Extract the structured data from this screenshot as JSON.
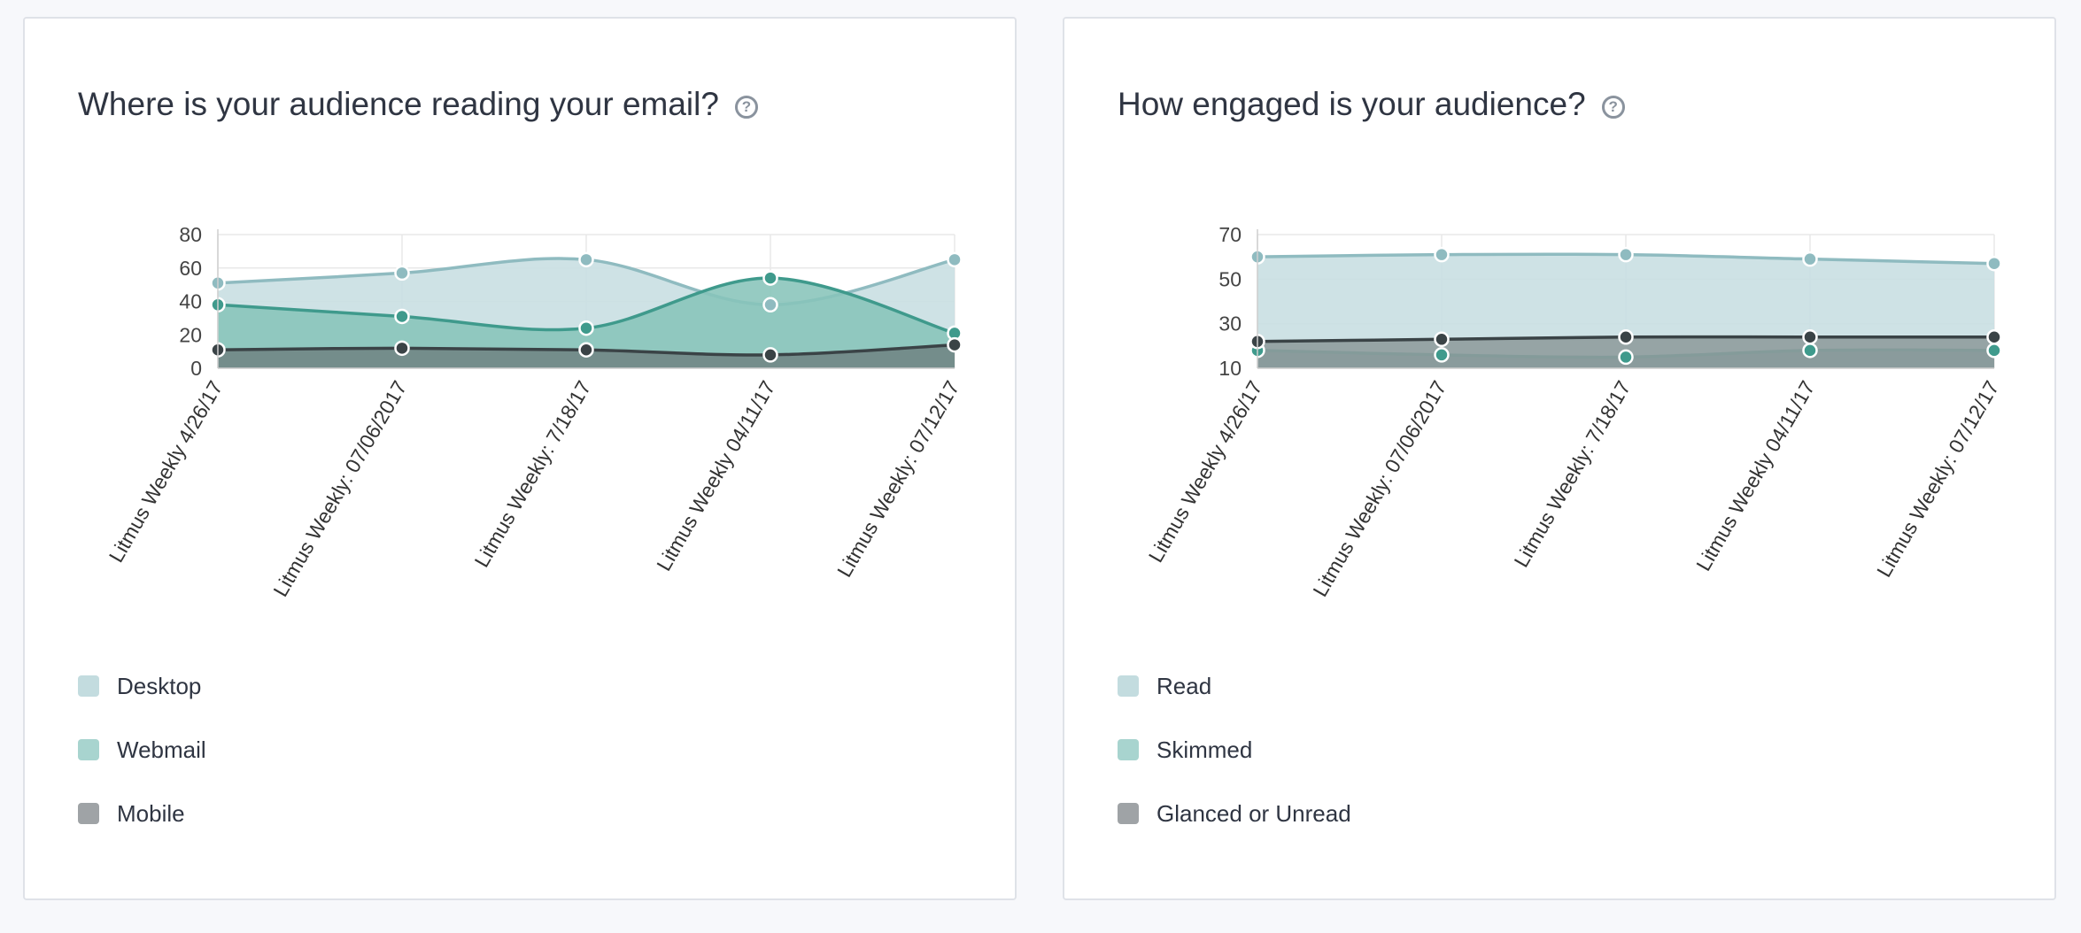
{
  "cards": [
    {
      "title": "Where is your audience reading your email?",
      "help_icon": "question-circle-icon",
      "legend": [
        {
          "label": "Desktop",
          "color": "#c3dcdf"
        },
        {
          "label": "Webmail",
          "color": "#a8d4cf"
        },
        {
          "label": "Mobile",
          "color": "#9fa3a6"
        }
      ]
    },
    {
      "title": "How engaged is your audience?",
      "help_icon": "question-circle-icon",
      "legend": [
        {
          "label": "Read",
          "color": "#c3dcdf"
        },
        {
          "label": "Skimmed",
          "color": "#a8d4cf"
        },
        {
          "label": "Glanced or Unread",
          "color": "#9fa3a6"
        }
      ]
    }
  ],
  "chart_data": [
    {
      "type": "area",
      "title": "Where is your audience reading your email?",
      "categories": [
        "Litmus Weekly 4/26/17",
        "Litmus Weekly: 07/06/2017",
        "Litmus Weekly: 7/18/17",
        "Litmus Weekly 04/11/17",
        "Litmus Weekly: 07/12/17"
      ],
      "ylim": [
        0,
        80
      ],
      "yticks": [
        0,
        20,
        40,
        60,
        80
      ],
      "grid": true,
      "legend_position": "bottom-left",
      "series": [
        {
          "name": "Desktop",
          "values": [
            51,
            57,
            65,
            38,
            65
          ],
          "fill": "#c7dee1",
          "line": "#8fbbc0",
          "marker": "#8fbbc0"
        },
        {
          "name": "Webmail",
          "values": [
            38,
            31,
            24,
            54,
            21
          ],
          "fill": "#88c4ba",
          "line": "#3f9a8c",
          "marker": "#3f9a8c"
        },
        {
          "name": "Mobile",
          "values": [
            11,
            12,
            11,
            8,
            14
          ],
          "fill": "#6f8484",
          "line": "#3a4346",
          "marker": "#3a4346"
        }
      ]
    },
    {
      "type": "area",
      "title": "How engaged is your audience?",
      "categories": [
        "Litmus Weekly 4/26/17",
        "Litmus Weekly: 07/06/2017",
        "Litmus Weekly: 7/18/17",
        "Litmus Weekly 04/11/17",
        "Litmus Weekly: 07/12/17"
      ],
      "ylim": [
        10,
        70
      ],
      "yticks": [
        10,
        30,
        50,
        70
      ],
      "grid": true,
      "legend_position": "bottom-left",
      "series": [
        {
          "name": "Read",
          "values": [
            60,
            61,
            61,
            59,
            57
          ],
          "fill": "#c7dee1",
          "line": "#8fbbc0",
          "marker": "#8fbbc0"
        },
        {
          "name": "Skimmed",
          "values": [
            18,
            16,
            15,
            18,
            18
          ],
          "fill": "#5f9490",
          "line": "#3f9a8c",
          "marker": "#3f9a8c"
        },
        {
          "name": "Glanced or Unread",
          "values": [
            22,
            23,
            24,
            24,
            24
          ],
          "fill": "#8e9b9c",
          "line": "#3a4346",
          "marker": "#3a4346"
        }
      ]
    }
  ]
}
